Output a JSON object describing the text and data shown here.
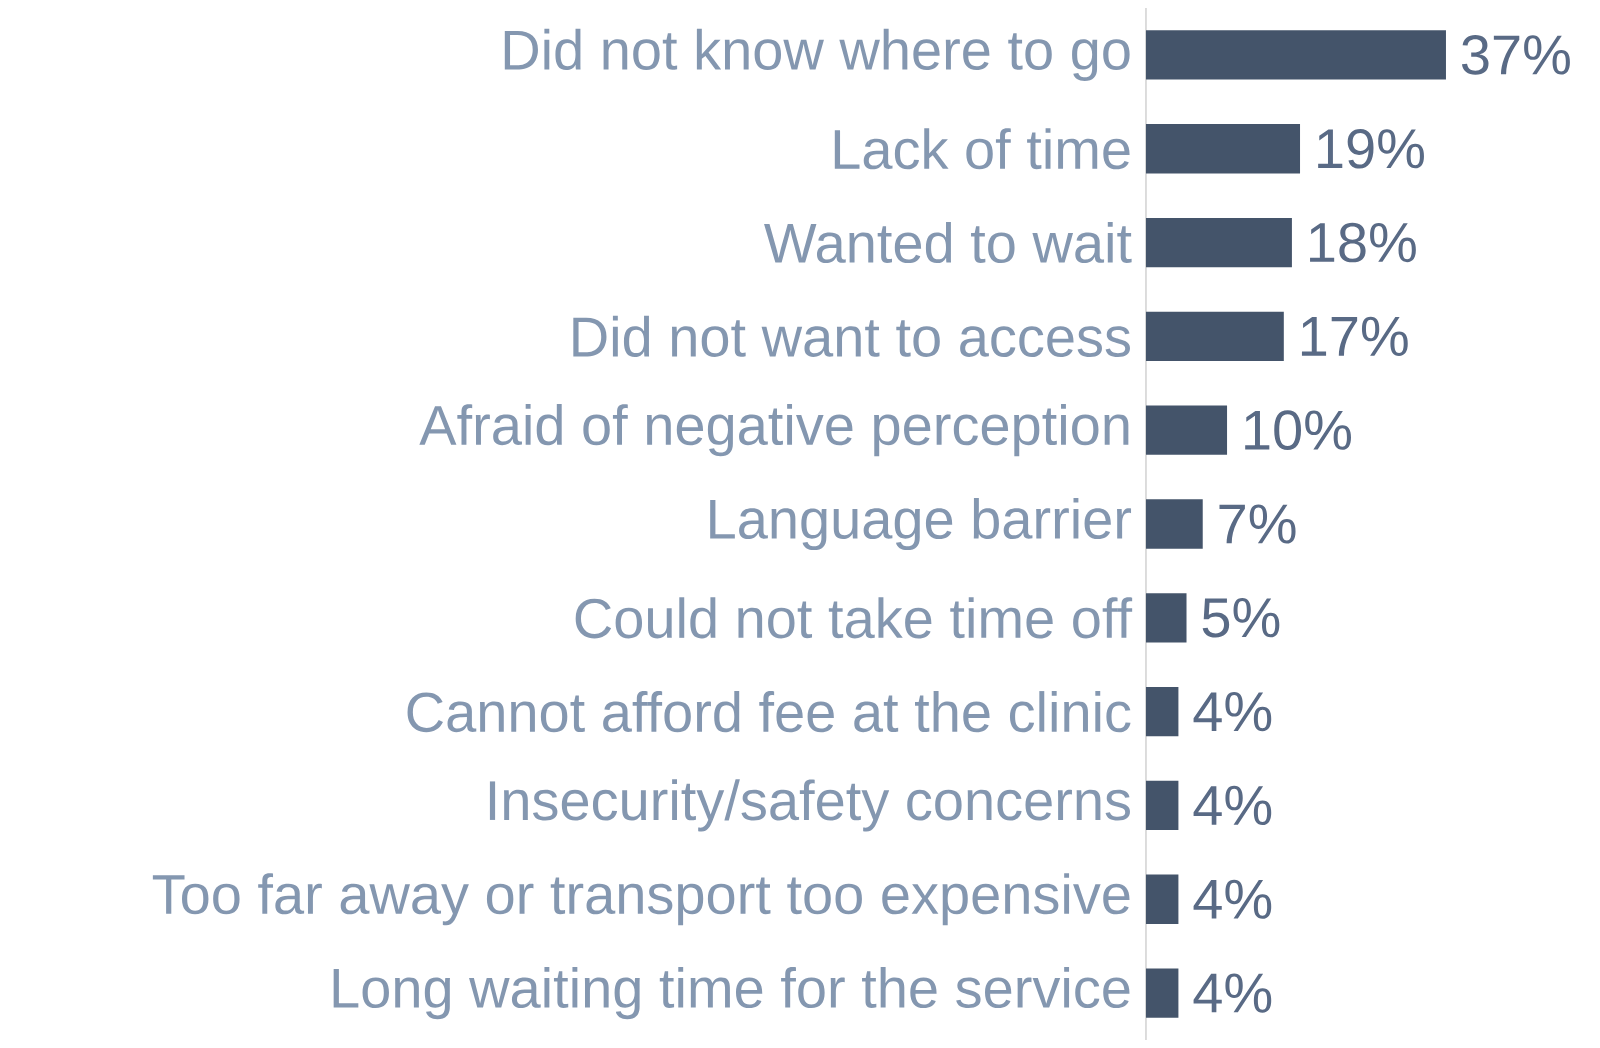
{
  "chart_data": {
    "type": "bar",
    "orientation": "horizontal",
    "categories": [
      "Did not know where to go",
      "Lack of time",
      "Wanted to wait",
      "Did not want to access",
      "Afraid of negative perception",
      "Language barrier",
      "Could not take time off",
      "Cannot afford fee at the clinic",
      "Insecurity/safety concerns",
      "Too far away or transport too expensive",
      "Long waiting time for the service"
    ],
    "values": [
      37,
      19,
      18,
      17,
      10,
      7,
      5,
      4,
      4,
      4,
      4
    ],
    "value_labels": [
      "37%",
      "19%",
      "18%",
      "17%",
      "10%",
      "7%",
      "5%",
      "4%",
      "4%",
      "4%",
      "4%"
    ],
    "color": "#44546a"
  }
}
